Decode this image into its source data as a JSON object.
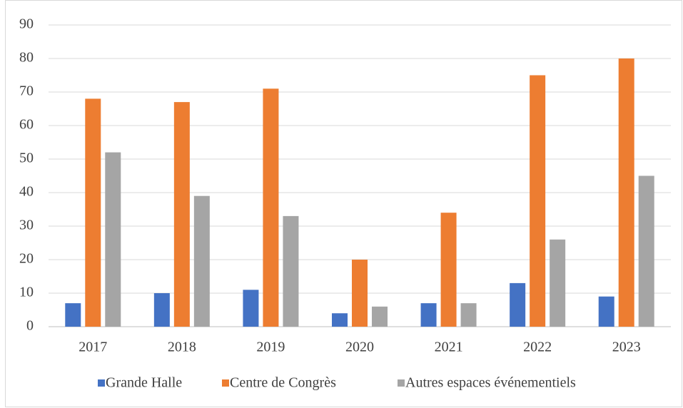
{
  "chart_data": {
    "type": "bar",
    "categories": [
      "2017",
      "2018",
      "2019",
      "2020",
      "2021",
      "2022",
      "2023"
    ],
    "series": [
      {
        "name": "Grande Halle",
        "color": "#4472c4",
        "values": [
          7,
          10,
          11,
          4,
          7,
          13,
          9
        ]
      },
      {
        "name": "Centre de Congrès",
        "color": "#ed7d31",
        "values": [
          68,
          67,
          71,
          20,
          34,
          75,
          80
        ]
      },
      {
        "name": "Autres espaces événementiels",
        "color": "#a5a5a5",
        "values": [
          52,
          39,
          33,
          6,
          7,
          26,
          45
        ]
      }
    ],
    "ylim": [
      0,
      90
    ],
    "yticks": [
      0,
      10,
      20,
      30,
      40,
      50,
      60,
      70,
      80,
      90
    ],
    "grid": true,
    "legend": "bottom"
  }
}
